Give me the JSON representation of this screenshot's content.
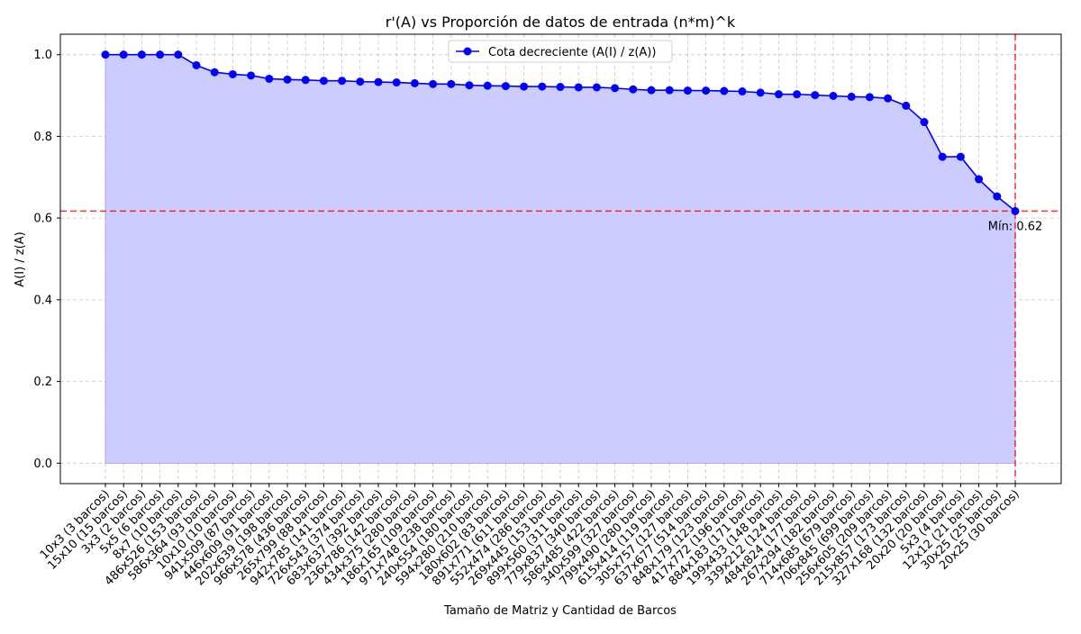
{
  "chart_data": {
    "type": "line",
    "title": "r'(A) vs Proporción de datos de entrada (n*m)^k",
    "xlabel": "Tamaño de Matriz y Cantidad de Barcos",
    "ylabel": "A(I) / z(A)",
    "ylim": [
      -0.05,
      1.05
    ],
    "yticks": [
      "0.0",
      "0.2",
      "0.4",
      "0.6",
      "0.8",
      "1.0"
    ],
    "grid": true,
    "legend_position": "top-center",
    "fill_under_curve": true,
    "categories": [
      "10x3 (3 barcos)",
      "15x10 (15 barcos)",
      "3x3 (2 barcos)",
      "5x5 (6 barcos)",
      "8x7 (10 barcos)",
      "486x526 (153 barcos)",
      "586x364 (93 barcos)",
      "10x10 (10 barcos)",
      "941x509 (87 barcos)",
      "446x609 (91 barcos)",
      "202x639 (198 barcos)",
      "966x578 (436 barcos)",
      "265x799 (88 barcos)",
      "942x785 (141 barcos)",
      "726x543 (374 barcos)",
      "683x637 (392 barcos)",
      "236x786 (142 barcos)",
      "434x375 (280 barcos)",
      "186x165 (109 barcos)",
      "971x748 (238 barcos)",
      "240x554 (180 barcos)",
      "594x280 (210 barcos)",
      "180x602 (83 barcos)",
      "891x771 (611 barcos)",
      "552x474 (286 barcos)",
      "269x445 (153 barcos)",
      "899x560 (311 barcos)",
      "779x837 (340 barcos)",
      "586x485 (422 barcos)",
      "340x599 (327 barcos)",
      "799x490 (280 barcos)",
      "615x414 (119 barcos)",
      "305x757 (127 barcos)",
      "637x677 (514 barcos)",
      "848x179 (123 barcos)",
      "417x772 (196 barcos)",
      "884x183 (171 barcos)",
      "199x433 (148 barcos)",
      "339x212 (124 barcos)",
      "484x824 (177 barcos)",
      "267x294 (182 barcos)",
      "714x685 (679 barcos)",
      "706x845 (699 barcos)",
      "256x605 (209 barcos)",
      "215x857 (173 barcos)",
      "327x168 (132 barcos)",
      "20x20 (20 barcos)",
      "5x3 (4 barcos)",
      "12x12 (21 barcos)",
      "30x25 (25 barcos)",
      "20x25 (30 barcos)"
    ],
    "series": [
      {
        "name": "Cota decreciente (A(I) / z(A))",
        "color": "#0000ff",
        "fill_color": "#ccccff",
        "values": [
          1.0,
          1.0,
          1.0,
          1.0,
          1.0,
          0.974,
          0.957,
          0.952,
          0.949,
          0.941,
          0.939,
          0.938,
          0.936,
          0.936,
          0.934,
          0.933,
          0.932,
          0.93,
          0.928,
          0.928,
          0.925,
          0.924,
          0.923,
          0.922,
          0.922,
          0.921,
          0.92,
          0.92,
          0.918,
          0.915,
          0.913,
          0.913,
          0.912,
          0.912,
          0.911,
          0.91,
          0.907,
          0.903,
          0.903,
          0.901,
          0.899,
          0.897,
          0.896,
          0.893,
          0.875,
          0.835,
          0.75,
          0.75,
          0.695,
          0.653,
          0.617
        ]
      }
    ],
    "reference_lines": {
      "horizontal_value": 0.617,
      "vertical_category": "20x25 (30 barcos)",
      "color": "#ff0000"
    },
    "annotation": {
      "text": "Mín: 0.62",
      "color": "#ff0000"
    }
  }
}
